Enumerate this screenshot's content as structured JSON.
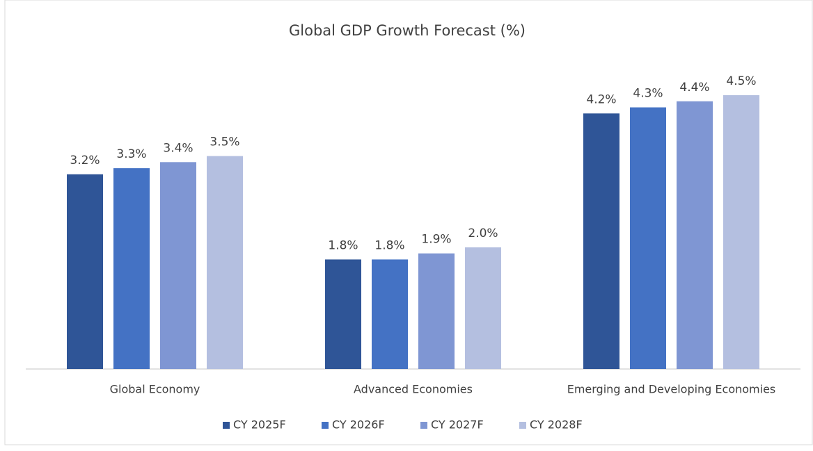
{
  "chart_data": {
    "type": "bar",
    "title": "Global GDP Growth Forecast (%)",
    "categories": [
      "Global Economy",
      "Advanced Economies",
      "Emerging and Developing Economies"
    ],
    "series": [
      {
        "name": "CY 2025F",
        "color": "#2f5597",
        "values": [
          3.2,
          1.8,
          4.2
        ],
        "value_labels": [
          "3.2%",
          "1.8%",
          "4.2%"
        ]
      },
      {
        "name": "CY 2026F",
        "color": "#4472c4",
        "values": [
          3.3,
          1.8,
          4.3
        ],
        "value_labels": [
          "3.3%",
          "1.8%",
          "4.3%"
        ]
      },
      {
        "name": "CY 2027F",
        "color": "#7f96d3",
        "values": [
          3.4,
          1.9,
          4.4
        ],
        "value_labels": [
          "3.4%",
          "1.9%",
          "4.4%"
        ]
      },
      {
        "name": "CY 2028F",
        "color": "#b4bfe0",
        "values": [
          3.5,
          2.0,
          4.5
        ],
        "value_labels": [
          "3.5%",
          "2.0%",
          "4.5%"
        ]
      }
    ],
    "legend": "bottom"
  }
}
